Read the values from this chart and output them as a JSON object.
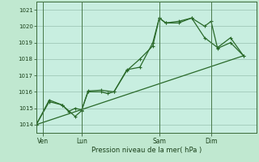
{
  "title": "",
  "xlabel": "Pression niveau de la mer( hPa )",
  "bg_color": "#c0e8d0",
  "plot_bg_color": "#c8eee0",
  "grid_color": "#a0c8b8",
  "line_color": "#2a6a2a",
  "vline_color": "#4a7a4a",
  "ylim": [
    1013.5,
    1021.5
  ],
  "yticks": [
    1014,
    1015,
    1016,
    1017,
    1018,
    1019,
    1020,
    1021
  ],
  "xtick_labels": [
    "Ven",
    "Lun",
    "Sam",
    "Dim"
  ],
  "xtick_positions": [
    0.5,
    3.5,
    9.5,
    13.5
  ],
  "vline_positions": [
    0.5,
    3.5,
    9.5,
    13.5
  ],
  "xlim": [
    0,
    17
  ],
  "series1_x": [
    0,
    1,
    2,
    2.5,
    3,
    3.5,
    4,
    5,
    5.5,
    6,
    7,
    8,
    9,
    9.5,
    10,
    11,
    12,
    13,
    13.5,
    14,
    15,
    16
  ],
  "series1_y": [
    1014.0,
    1015.4,
    1015.2,
    1014.8,
    1015.0,
    1014.9,
    1016.0,
    1016.0,
    1015.9,
    1016.0,
    1017.3,
    1018.0,
    1018.8,
    1020.5,
    1020.2,
    1020.3,
    1020.5,
    1020.0,
    1020.3,
    1018.65,
    1019.0,
    1018.2
  ],
  "series2_x": [
    0,
    1,
    2,
    3,
    3.5,
    4,
    5,
    6,
    7,
    8,
    9,
    9.5,
    10,
    11,
    12,
    13,
    14,
    15,
    16
  ],
  "series2_y": [
    1014.0,
    1015.5,
    1015.2,
    1014.5,
    1014.85,
    1016.05,
    1016.1,
    1016.0,
    1017.35,
    1017.5,
    1019.0,
    1020.5,
    1020.2,
    1020.2,
    1020.5,
    1019.3,
    1018.7,
    1019.3,
    1018.2
  ],
  "series3_x": [
    0,
    16
  ],
  "series3_y": [
    1014.0,
    1018.2
  ]
}
